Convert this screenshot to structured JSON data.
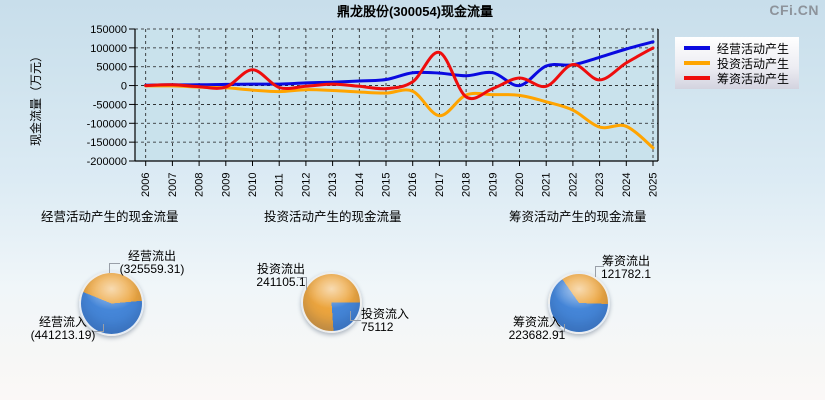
{
  "logo": "CFi.CN",
  "chart_data": [
    {
      "type": "line",
      "title": "鼎龙股份(300054)现金流量",
      "ylabel": "现金流量（万元）",
      "x": [
        2006,
        2007,
        2008,
        2009,
        2010,
        2011,
        2012,
        2013,
        2014,
        2015,
        2016,
        2017,
        2018,
        2019,
        2020,
        2021,
        2022,
        2023,
        2024,
        2025
      ],
      "ylim": [
        -200000,
        150000
      ],
      "ytick_step": 50000,
      "grid": "dashed",
      "legend_position": "outside-right",
      "series": [
        {
          "name": "经营活动产生",
          "color": "#0a0ae0",
          "values": [
            1000,
            2000,
            2000,
            3000,
            4000,
            4000,
            7000,
            9000,
            12000,
            16000,
            34000,
            33000,
            26000,
            34000,
            0,
            52000,
            55000,
            75000,
            97000,
            116000
          ]
        },
        {
          "name": "投资活动产生",
          "color": "#ffa400",
          "values": [
            -1000,
            -1000,
            -4000,
            -6000,
            -12000,
            -16000,
            -11000,
            -13000,
            -17000,
            -20000,
            -15000,
            -80000,
            -25000,
            -24000,
            -26000,
            -43000,
            -65000,
            -110000,
            -108000,
            -165000
          ]
        },
        {
          "name": "筹资活动产生",
          "color": "#ee0d0d",
          "values": [
            0,
            2000,
            -3000,
            -4000,
            42000,
            -5000,
            -2000,
            4000,
            -2000,
            -8000,
            10000,
            88000,
            -30000,
            -8000,
            20000,
            -2000,
            56000,
            15000,
            60000,
            100000
          ]
        }
      ]
    },
    {
      "type": "pie",
      "title": "经营活动产生的现金流量",
      "slices": [
        {
          "label": "经营流出",
          "value": 325559.31,
          "display": "(325559.31)",
          "color": "#eca53e"
        },
        {
          "label": "经营流入",
          "value": 441213.19,
          "display": "(441213.19)",
          "color": "#4586d8"
        }
      ]
    },
    {
      "type": "pie",
      "title": "投资活动产生的现金流量",
      "slices": [
        {
          "label": "投资流出",
          "value": 241105.1,
          "display": "241105.1",
          "color": "#eca53e"
        },
        {
          "label": "投资流入",
          "value": 75112,
          "display": "75112",
          "color": "#4586d8"
        }
      ]
    },
    {
      "type": "pie",
      "title": "筹资活动产生的现金流量",
      "slices": [
        {
          "label": "筹资流出",
          "value": 121782.1,
          "display": "121782.1",
          "color": "#eca53e"
        },
        {
          "label": "筹资流入",
          "value": 223682.91,
          "display": "223682.91",
          "color": "#4586d8"
        }
      ]
    }
  ]
}
